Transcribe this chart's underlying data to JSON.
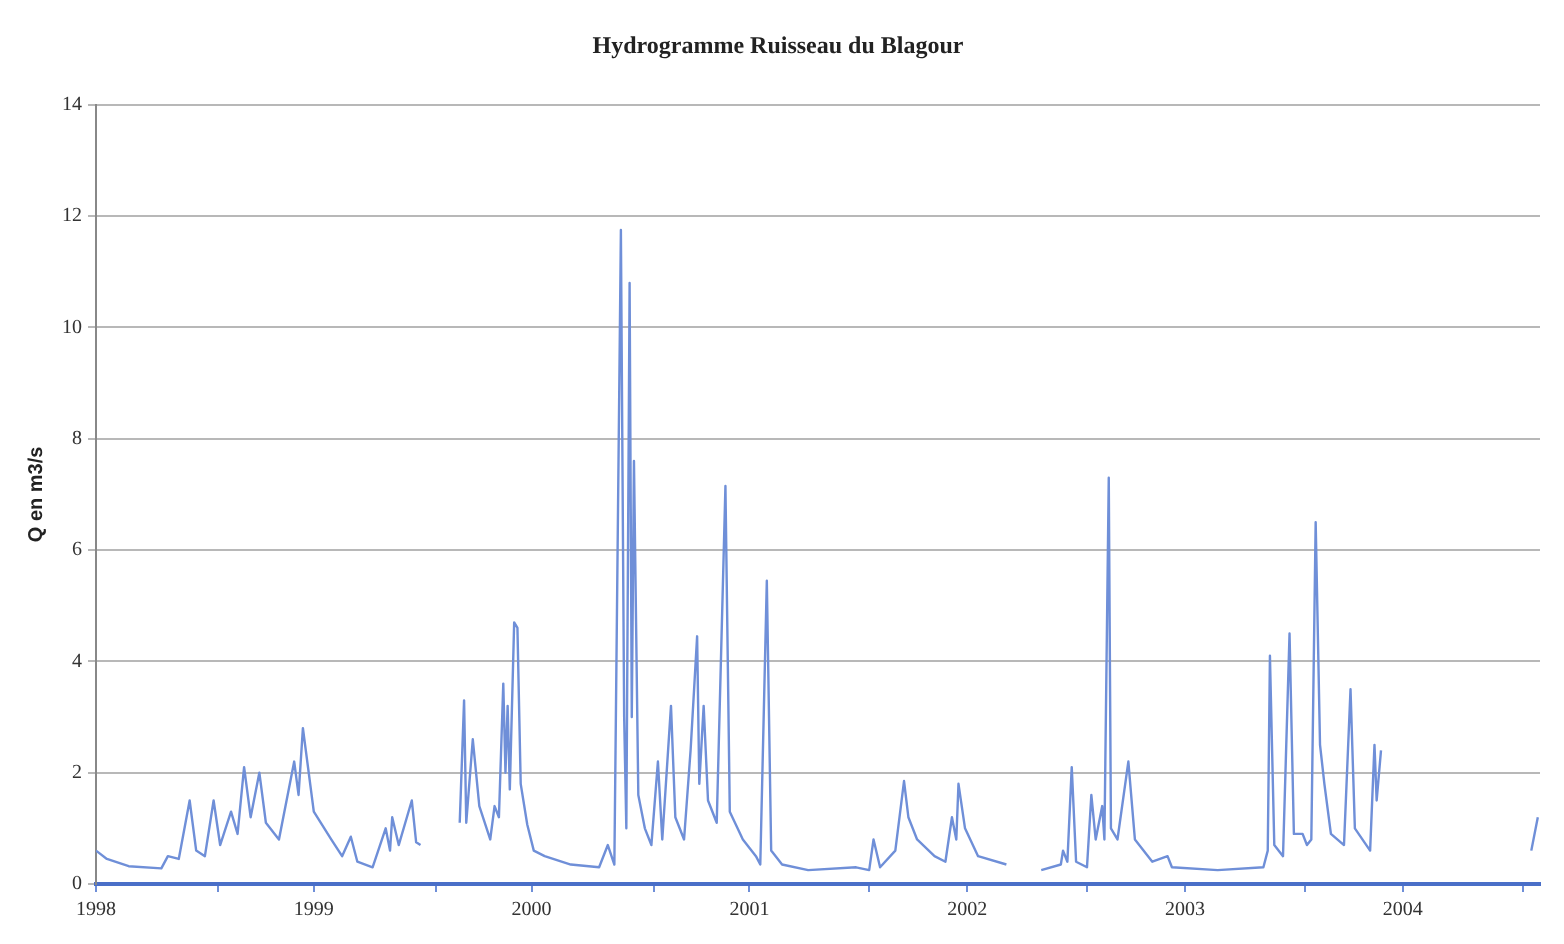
{
  "chart_data": {
    "type": "line",
    "title": "Hydrogramme Ruisseau du Blagour",
    "ylabel": "Q en m3/s",
    "x": [
      1998.0,
      1998.05,
      1998.15,
      1998.3,
      1998.33,
      1998.38,
      1998.43,
      1998.46,
      1998.5,
      1998.54,
      1998.57,
      1998.62,
      1998.65,
      1998.68,
      1998.71,
      1998.75,
      1998.78,
      1998.84,
      1998.91,
      1998.93,
      1998.95,
      1999.0,
      1999.08,
      1999.13,
      1999.17,
      1999.2,
      1999.27,
      1999.33,
      1999.35,
      1999.36,
      1999.39,
      1999.45,
      1999.47,
      1999.49,
      1999.58,
      1999.67,
      1999.69,
      1999.7,
      1999.73,
      1999.76,
      1999.81,
      1999.83,
      1999.85,
      1999.87,
      1999.88,
      1999.89,
      1999.9,
      1999.92,
      1999.935,
      1999.95,
      1999.98,
      2000.01,
      2000.06,
      2000.18,
      2000.31,
      2000.35,
      2000.38,
      2000.41,
      2000.425,
      2000.435,
      2000.45,
      2000.46,
      2000.47,
      2000.49,
      2000.52,
      2000.55,
      2000.58,
      2000.6,
      2000.64,
      2000.66,
      2000.7,
      2000.73,
      2000.76,
      2000.77,
      2000.79,
      2000.81,
      2000.85,
      2000.89,
      2000.91,
      2000.97,
      2001.03,
      2001.05,
      2001.08,
      2001.1,
      2001.15,
      2001.27,
      2001.49,
      2001.55,
      2001.57,
      2001.6,
      2001.67,
      2001.71,
      2001.73,
      2001.77,
      2001.85,
      2001.9,
      2001.93,
      2001.95,
      2001.96,
      2001.99,
      2002.05,
      2002.18,
      2002.26,
      2002.34,
      2002.43,
      2002.44,
      2002.46,
      2002.48,
      2002.5,
      2002.55,
      2002.57,
      2002.59,
      2002.62,
      2002.63,
      2002.65,
      2002.66,
      2002.69,
      2002.74,
      2002.77,
      2002.85,
      2002.92,
      2002.94,
      2003.15,
      2003.36,
      2003.38,
      2003.39,
      2003.41,
      2003.45,
      2003.48,
      2003.5,
      2003.54,
      2003.56,
      2003.58,
      2003.6,
      2003.62,
      2003.64,
      2003.67,
      2003.73,
      2003.76,
      2003.78,
      2003.85,
      2003.87,
      2003.88,
      2003.9,
      2004.2,
      2004.59,
      2004.62
    ],
    "values": [
      0.6,
      0.45,
      0.32,
      0.28,
      0.5,
      0.45,
      1.5,
      0.6,
      0.5,
      1.5,
      0.7,
      1.3,
      0.9,
      2.1,
      1.2,
      2.0,
      1.1,
      0.8,
      2.2,
      1.6,
      2.8,
      1.3,
      0.8,
      0.5,
      0.85,
      0.4,
      0.3,
      1.0,
      0.6,
      1.2,
      0.7,
      1.5,
      0.75,
      0.7,
      null,
      1.1,
      3.3,
      1.1,
      2.6,
      1.4,
      0.8,
      1.4,
      1.2,
      3.6,
      2.0,
      3.2,
      1.7,
      4.7,
      4.6,
      1.8,
      1.07,
      0.6,
      0.5,
      0.35,
      0.3,
      0.7,
      0.35,
      11.75,
      3.0,
      1.0,
      10.8,
      3.0,
      7.6,
      1.6,
      1.0,
      0.7,
      2.2,
      0.8,
      3.2,
      1.2,
      0.8,
      2.4,
      4.45,
      1.8,
      3.2,
      1.5,
      1.1,
      7.15,
      1.3,
      0.8,
      0.5,
      0.35,
      5.45,
      0.6,
      0.35,
      0.25,
      0.3,
      0.25,
      0.8,
      0.3,
      0.6,
      1.85,
      1.2,
      0.8,
      0.5,
      0.4,
      1.2,
      0.8,
      1.8,
      1.0,
      0.5,
      0.35,
      null,
      0.25,
      0.35,
      0.6,
      0.4,
      2.1,
      0.4,
      0.3,
      1.6,
      0.8,
      1.4,
      0.8,
      7.3,
      1.0,
      0.8,
      2.2,
      0.8,
      0.4,
      0.5,
      0.3,
      0.25,
      0.3,
      0.6,
      4.1,
      0.7,
      0.5,
      4.5,
      0.9,
      0.9,
      0.7,
      0.8,
      6.5,
      2.5,
      1.8,
      0.9,
      0.7,
      3.5,
      1.0,
      0.6,
      2.5,
      1.5,
      2.4,
      null,
      0.6,
      1.2
    ],
    "color": "#6f8fd8",
    "xlim": [
      1998,
      2004.63
    ],
    "xticks": [
      1998,
      {
        "value": 1998.56,
        "label": null
      },
      1999,
      {
        "value": 1999.56,
        "label": null
      },
      2000,
      {
        "value": 2000.56,
        "label": null
      },
      2001,
      {
        "value": 2001.55,
        "label": null
      },
      2002,
      {
        "value": 2002.55,
        "label": null
      },
      2003,
      {
        "value": 2003.55,
        "label": null
      },
      2004,
      {
        "value": 2004.55,
        "label": null
      }
    ],
    "ylim": [
      0,
      14
    ],
    "yticks": [
      0,
      2,
      4,
      6,
      8,
      10,
      12,
      14
    ],
    "grid": "y",
    "legend": false,
    "marker": "none",
    "line_style": "solid"
  }
}
